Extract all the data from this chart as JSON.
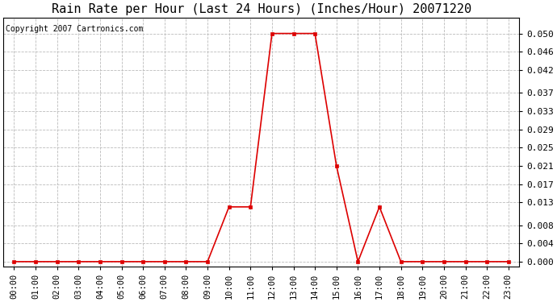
{
  "title": "Rain Rate per Hour (Last 24 Hours) (Inches/Hour) 20071220",
  "copyright": "Copyright 2007 Cartronics.com",
  "line_color": "#dd0000",
  "marker_color": "#dd0000",
  "bg_color": "#ffffff",
  "grid_color": "#bbbbbb",
  "hours": [
    0,
    1,
    2,
    3,
    4,
    5,
    6,
    7,
    8,
    9,
    10,
    11,
    12,
    13,
    14,
    15,
    16,
    17,
    18,
    19,
    20,
    21,
    22,
    23
  ],
  "values": [
    0.0,
    0.0,
    0.0,
    0.0,
    0.0,
    0.0,
    0.0,
    0.0,
    0.0,
    0.0,
    0.012,
    0.012,
    0.05,
    0.05,
    0.05,
    0.021,
    0.0,
    0.012,
    0.0,
    0.0,
    0.0,
    0.0,
    0.0,
    0.0
  ],
  "yticks": [
    0.0,
    0.004,
    0.008,
    0.013,
    0.017,
    0.021,
    0.025,
    0.029,
    0.033,
    0.037,
    0.042,
    0.046,
    0.05
  ],
  "ylim": [
    -0.001,
    0.0535
  ],
  "title_fontsize": 11,
  "copyright_fontsize": 7,
  "tick_fontsize": 7.5,
  "ytick_fontsize": 8
}
